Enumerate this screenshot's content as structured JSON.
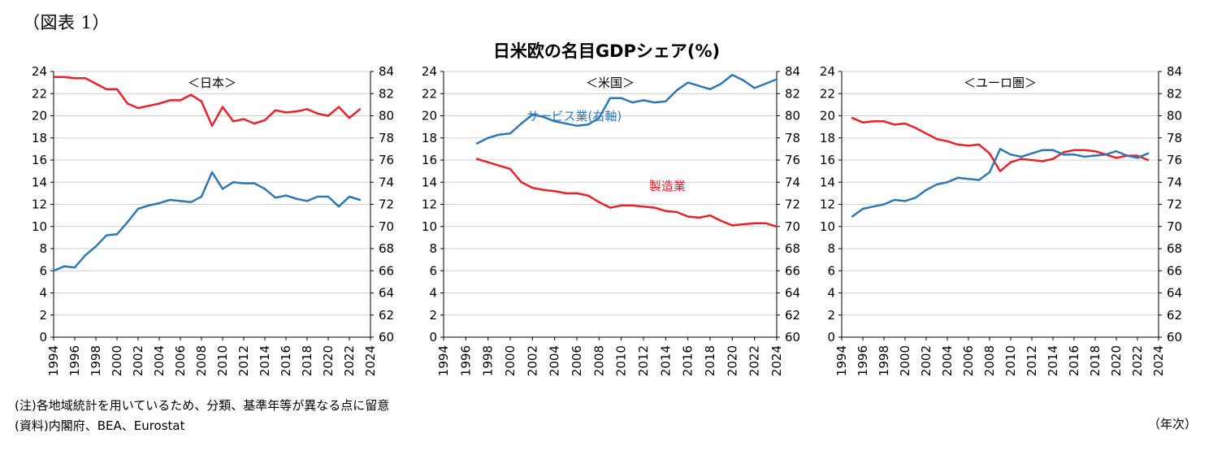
{
  "figure_label": "（図表 1）",
  "main_title": "日米欧の名目GDPシェア(%)",
  "notes": {
    "note1": "(注)各地域統計を用いているため、分類、基準年等が異なる点に留意",
    "note2": "(資料)内閣府、BEA、Eurostat"
  },
  "x_unit": "（年次）",
  "colors": {
    "manufacturing": "#e8212b",
    "services": "#2f77b4",
    "grid": "#cfcfcf",
    "axis": "#000000"
  },
  "chart_data": [
    {
      "type": "line",
      "title": "＜日本＞",
      "x_ticks": [
        1994,
        1996,
        1998,
        2000,
        2002,
        2004,
        2006,
        2008,
        2010,
        2012,
        2014,
        2016,
        2018,
        2020,
        2022,
        2024
      ],
      "x_range": [
        1994,
        2024
      ],
      "left_axis": {
        "range": [
          0,
          24
        ],
        "ticks": [
          0,
          2,
          4,
          6,
          8,
          10,
          12,
          14,
          16,
          18,
          20,
          22,
          24
        ]
      },
      "right_axis": {
        "range": [
          60,
          84
        ],
        "ticks": [
          60,
          62,
          64,
          66,
          68,
          70,
          72,
          74,
          76,
          78,
          80,
          82,
          84
        ]
      },
      "grid": true,
      "annotations": [],
      "series": [
        {
          "key": "manufacturing",
          "axis": "left",
          "x": [
            1994,
            1995,
            1996,
            1997,
            1998,
            1999,
            2000,
            2001,
            2002,
            2003,
            2004,
            2005,
            2006,
            2007,
            2008,
            2009,
            2010,
            2011,
            2012,
            2013,
            2014,
            2015,
            2016,
            2017,
            2018,
            2019,
            2020,
            2021,
            2022,
            2023
          ],
          "values": [
            23.5,
            23.5,
            23.4,
            23.4,
            22.9,
            22.4,
            22.4,
            21.1,
            20.7,
            20.9,
            21.1,
            21.4,
            21.4,
            21.9,
            21.3,
            19.1,
            20.8,
            19.5,
            19.7,
            19.3,
            19.6,
            20.5,
            20.3,
            20.4,
            20.6,
            20.2,
            20.0,
            20.8,
            19.8,
            20.6
          ]
        },
        {
          "key": "services",
          "axis": "right",
          "x": [
            1994,
            1995,
            1996,
            1997,
            1998,
            1999,
            2000,
            2001,
            2002,
            2003,
            2004,
            2005,
            2006,
            2007,
            2008,
            2009,
            2010,
            2011,
            2012,
            2013,
            2014,
            2015,
            2016,
            2017,
            2018,
            2019,
            2020,
            2021,
            2022,
            2023
          ],
          "values": [
            66.0,
            66.4,
            66.3,
            67.4,
            68.2,
            69.2,
            69.3,
            70.4,
            71.6,
            71.9,
            72.1,
            72.4,
            72.3,
            72.2,
            72.7,
            74.9,
            73.4,
            74.0,
            73.9,
            73.9,
            73.4,
            72.6,
            72.8,
            72.5,
            72.3,
            72.7,
            72.7,
            71.8,
            72.7,
            72.4
          ]
        }
      ]
    },
    {
      "type": "line",
      "title": "＜米国＞",
      "x_ticks": [
        1994,
        1996,
        1998,
        2000,
        2002,
        2004,
        2006,
        2008,
        2010,
        2012,
        2014,
        2016,
        2018,
        2020,
        2022,
        2024
      ],
      "x_range": [
        1994,
        2024
      ],
      "left_axis": {
        "range": [
          0,
          24
        ],
        "ticks": [
          0,
          2,
          4,
          6,
          8,
          10,
          12,
          14,
          16,
          18,
          20,
          22,
          24
        ]
      },
      "right_axis": {
        "range": [
          60,
          84
        ],
        "ticks": [
          60,
          62,
          64,
          66,
          68,
          70,
          72,
          74,
          76,
          78,
          80,
          82,
          84
        ]
      },
      "grid": true,
      "annotations": [
        {
          "text": "サービス業(右軸)",
          "key": "services",
          "x": 2001.5,
          "y": 19.6
        },
        {
          "text": "製造業",
          "key": "manufacturing",
          "x": 2012.5,
          "y": 13.3
        }
      ],
      "series": [
        {
          "key": "manufacturing",
          "axis": "left",
          "x": [
            1997,
            1998,
            1999,
            2000,
            2001,
            2002,
            2003,
            2004,
            2005,
            2006,
            2007,
            2008,
            2009,
            2010,
            2011,
            2012,
            2013,
            2014,
            2015,
            2016,
            2017,
            2018,
            2019,
            2020,
            2021,
            2022,
            2023,
            2024
          ],
          "values": [
            16.1,
            15.8,
            15.5,
            15.2,
            14.0,
            13.5,
            13.3,
            13.2,
            13.0,
            13.0,
            12.8,
            12.2,
            11.7,
            11.9,
            11.9,
            11.8,
            11.7,
            11.4,
            11.3,
            10.9,
            10.8,
            11.0,
            10.5,
            10.1,
            10.2,
            10.3,
            10.3,
            10.0
          ]
        },
        {
          "key": "services",
          "axis": "right",
          "x": [
            1997,
            1998,
            1999,
            2000,
            2001,
            2002,
            2003,
            2004,
            2005,
            2006,
            2007,
            2008,
            2009,
            2010,
            2011,
            2012,
            2013,
            2014,
            2015,
            2016,
            2017,
            2018,
            2019,
            2020,
            2021,
            2022,
            2023,
            2024
          ],
          "values": [
            77.5,
            78.0,
            78.3,
            78.4,
            79.3,
            80.1,
            79.9,
            79.5,
            79.3,
            79.1,
            79.2,
            79.8,
            81.6,
            81.6,
            81.2,
            81.4,
            81.2,
            81.3,
            82.3,
            83.0,
            82.7,
            82.4,
            82.9,
            83.7,
            83.2,
            82.5,
            82.9,
            83.3
          ]
        }
      ]
    },
    {
      "type": "line",
      "title": "＜ユーロ圏＞",
      "x_ticks": [
        1994,
        1996,
        1998,
        2000,
        2002,
        2004,
        2006,
        2008,
        2010,
        2012,
        2014,
        2016,
        2018,
        2020,
        2022,
        2024
      ],
      "x_range": [
        1994,
        2024
      ],
      "left_axis": {
        "range": [
          0,
          24
        ],
        "ticks": [
          0,
          2,
          4,
          6,
          8,
          10,
          12,
          14,
          16,
          18,
          20,
          22,
          24
        ]
      },
      "right_axis": {
        "range": [
          60,
          84
        ],
        "ticks": [
          60,
          62,
          64,
          66,
          68,
          70,
          72,
          74,
          76,
          78,
          80,
          82,
          84
        ]
      },
      "grid": true,
      "annotations": [],
      "series": [
        {
          "key": "manufacturing",
          "axis": "left",
          "x": [
            1995,
            1996,
            1997,
            1998,
            1999,
            2000,
            2001,
            2002,
            2003,
            2004,
            2005,
            2006,
            2007,
            2008,
            2009,
            2010,
            2011,
            2012,
            2013,
            2014,
            2015,
            2016,
            2017,
            2018,
            2019,
            2020,
            2021,
            2022,
            2023
          ],
          "values": [
            19.8,
            19.4,
            19.5,
            19.5,
            19.2,
            19.3,
            18.9,
            18.4,
            17.9,
            17.7,
            17.4,
            17.3,
            17.4,
            16.6,
            15.0,
            15.8,
            16.1,
            16.0,
            15.9,
            16.1,
            16.7,
            16.9,
            16.9,
            16.8,
            16.5,
            16.2,
            16.4,
            16.4,
            16.0
          ]
        },
        {
          "key": "services",
          "axis": "right",
          "x": [
            1995,
            1996,
            1997,
            1998,
            1999,
            2000,
            2001,
            2002,
            2003,
            2004,
            2005,
            2006,
            2007,
            2008,
            2009,
            2010,
            2011,
            2012,
            2013,
            2014,
            2015,
            2016,
            2017,
            2018,
            2019,
            2020,
            2021,
            2022,
            2023
          ],
          "values": [
            70.9,
            71.6,
            71.8,
            72.0,
            72.4,
            72.3,
            72.6,
            73.3,
            73.8,
            74.0,
            74.4,
            74.3,
            74.2,
            74.9,
            77.0,
            76.5,
            76.3,
            76.6,
            76.9,
            76.9,
            76.5,
            76.5,
            76.3,
            76.4,
            76.5,
            76.8,
            76.4,
            76.2,
            76.6
          ]
        }
      ]
    }
  ]
}
